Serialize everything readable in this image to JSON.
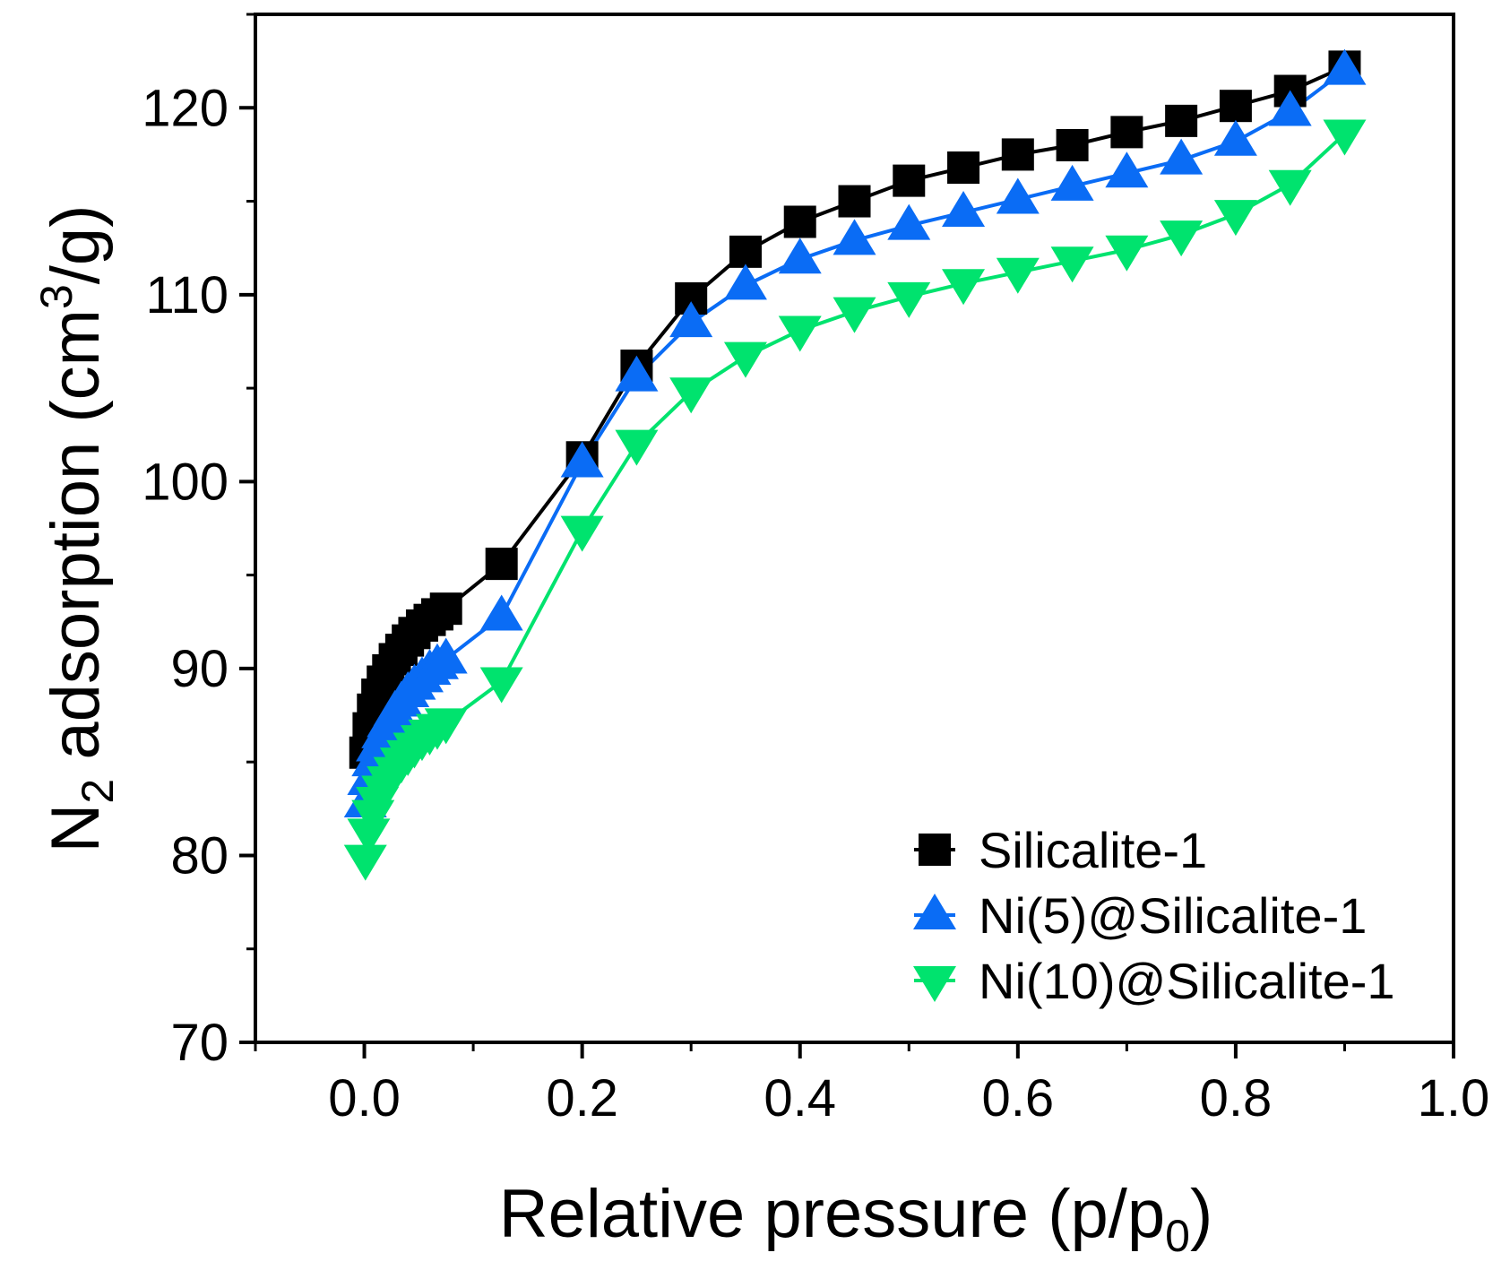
{
  "chart_data": {
    "type": "line",
    "title": "",
    "xlabel": "Relative pressure (p/p0)",
    "xlabel_parts": {
      "main": "Relative pressure (p/p",
      "sub": "0",
      "end": ")"
    },
    "ylabel": "N2 adsorption (cm3/g)",
    "ylabel_parts": {
      "n": "N",
      "sub": "2",
      "mid": " adsorption (cm",
      "sup": "3",
      "end": "/g)"
    },
    "xlim": [
      -0.1,
      1.0
    ],
    "ylim": [
      70,
      125
    ],
    "xticks": [
      "0.0",
      "0.2",
      "0.4",
      "0.6",
      "0.8",
      "1.0"
    ],
    "xtick_values": [
      0.0,
      0.2,
      0.4,
      0.6,
      0.8,
      1.0
    ],
    "yticks": [
      "70",
      "80",
      "90",
      "100",
      "110",
      "120"
    ],
    "ytick_values": [
      70,
      80,
      90,
      100,
      110,
      120
    ],
    "grid": false,
    "legend_position": "bottom-right",
    "series": [
      {
        "name": "Silicalite-1",
        "marker": "square",
        "color": "#000000",
        "x": [
          0.001,
          0.004,
          0.008,
          0.012,
          0.017,
          0.022,
          0.028,
          0.034,
          0.04,
          0.046,
          0.053,
          0.06,
          0.067,
          0.075,
          0.126,
          0.2,
          0.25,
          0.3,
          0.35,
          0.4,
          0.45,
          0.5,
          0.55,
          0.6,
          0.65,
          0.7,
          0.75,
          0.8,
          0.85,
          0.9
        ],
        "y": [
          85.5,
          86.8,
          87.8,
          88.6,
          89.3,
          89.9,
          90.5,
          91.0,
          91.5,
          91.9,
          92.3,
          92.6,
          92.9,
          93.2,
          95.6,
          101.3,
          106.2,
          109.8,
          112.3,
          113.9,
          115.0,
          116.1,
          116.8,
          117.5,
          118.0,
          118.7,
          119.3,
          120.1,
          120.9,
          122.2
        ]
      },
      {
        "name": "Ni(5)@Silicalite-1",
        "marker": "triangle-up",
        "color": "#0A6CF5",
        "x": [
          0.001,
          0.004,
          0.008,
          0.012,
          0.017,
          0.022,
          0.028,
          0.034,
          0.04,
          0.046,
          0.053,
          0.06,
          0.067,
          0.075,
          0.126,
          0.2,
          0.25,
          0.3,
          0.35,
          0.4,
          0.45,
          0.5,
          0.55,
          0.6,
          0.65,
          0.7,
          0.75,
          0.8,
          0.85,
          0.9
        ],
        "y": [
          82.8,
          84.0,
          85.0,
          85.8,
          86.5,
          87.1,
          87.7,
          88.2,
          88.7,
          89.1,
          89.5,
          89.9,
          90.2,
          90.5,
          92.8,
          101.0,
          105.6,
          108.5,
          110.5,
          111.9,
          112.9,
          113.7,
          114.4,
          115.1,
          115.8,
          116.5,
          117.2,
          118.2,
          119.8,
          122.0
        ]
      },
      {
        "name": "Ni(10)@Silicalite-1",
        "marker": "triangle-down",
        "color": "#00E36E",
        "x": [
          0.001,
          0.004,
          0.008,
          0.012,
          0.017,
          0.022,
          0.028,
          0.034,
          0.04,
          0.046,
          0.053,
          0.06,
          0.067,
          0.075,
          0.126,
          0.2,
          0.25,
          0.3,
          0.35,
          0.4,
          0.45,
          0.5,
          0.55,
          0.6,
          0.65,
          0.7,
          0.75,
          0.8,
          0.85,
          0.9
        ],
        "y": [
          79.8,
          81.2,
          82.2,
          82.9,
          83.5,
          84.0,
          84.5,
          85.0,
          85.4,
          85.8,
          86.2,
          86.5,
          86.8,
          87.1,
          89.3,
          97.4,
          102.0,
          104.8,
          106.7,
          108.1,
          109.1,
          109.9,
          110.6,
          111.2,
          111.8,
          112.4,
          113.2,
          114.3,
          115.9,
          118.6
        ]
      }
    ]
  }
}
